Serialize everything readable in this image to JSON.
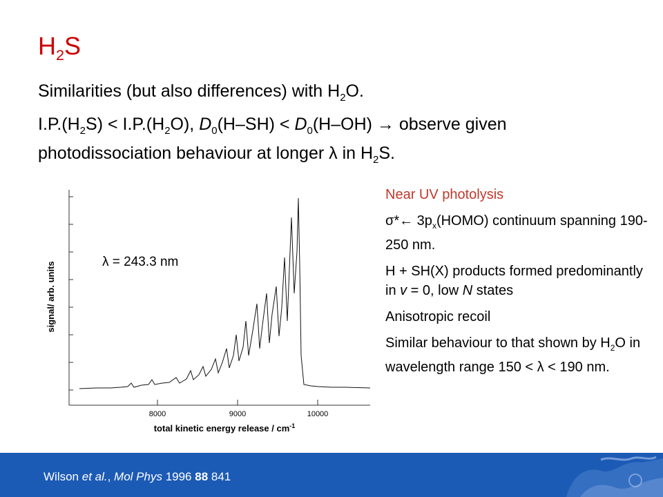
{
  "title": {
    "main": "H",
    "sub": "2",
    "tail": "S"
  },
  "line1": {
    "a": "Similarities (but also differences) with H",
    "sub": "2",
    "b": "O."
  },
  "line2": {
    "p1": "I.P.(H",
    "s1": "2",
    "p2": "S) < I.P.(H",
    "s2": "2",
    "p3": "O), ",
    "d1": "D",
    "ds1": "0",
    "p4": "(H–SH) < ",
    "d2": "D",
    "ds2": "0",
    "p5": "(H–OH) → observe given photodissociation behaviour at longer λ in H",
    "s3": "2",
    "p6": "S."
  },
  "plot": {
    "xlabel": "total kinetic energy release / cm",
    "xlabel_sup": "-1",
    "ylabel": "signal/ arb. units",
    "annotation": "λ = 243.3 nm",
    "ticks": [
      "8000",
      "9000",
      "10000"
    ]
  },
  "bullets": {
    "b1": "Near UV photolysis",
    "b2a": "σ*← 3p",
    "b2sub": "x",
    "b2b": "(HOMO) continuum spanning 190-250 nm.",
    "b3a": "H + SH(X) products formed predominantly in ",
    "b3v": "v",
    "b3b": " = 0, low ",
    "b3n": "N",
    "b3c": " states",
    "b4": "Anisotropic recoil",
    "b5a": "Similar behaviour to that shown by H",
    "b5sub": "2",
    "b5b": "O in wavelength range 150 < λ < 190 nm."
  },
  "footer": {
    "c1": "Wilson ",
    "c2": "et al.",
    "c3": ", ",
    "c4": "Mol Phys",
    "c5": " 1996 ",
    "c6": "88",
    "c7": " 841"
  },
  "colors": {
    "title": "#cc0000",
    "footer": "#1c5bb5",
    "accent": "#c0392b"
  }
}
